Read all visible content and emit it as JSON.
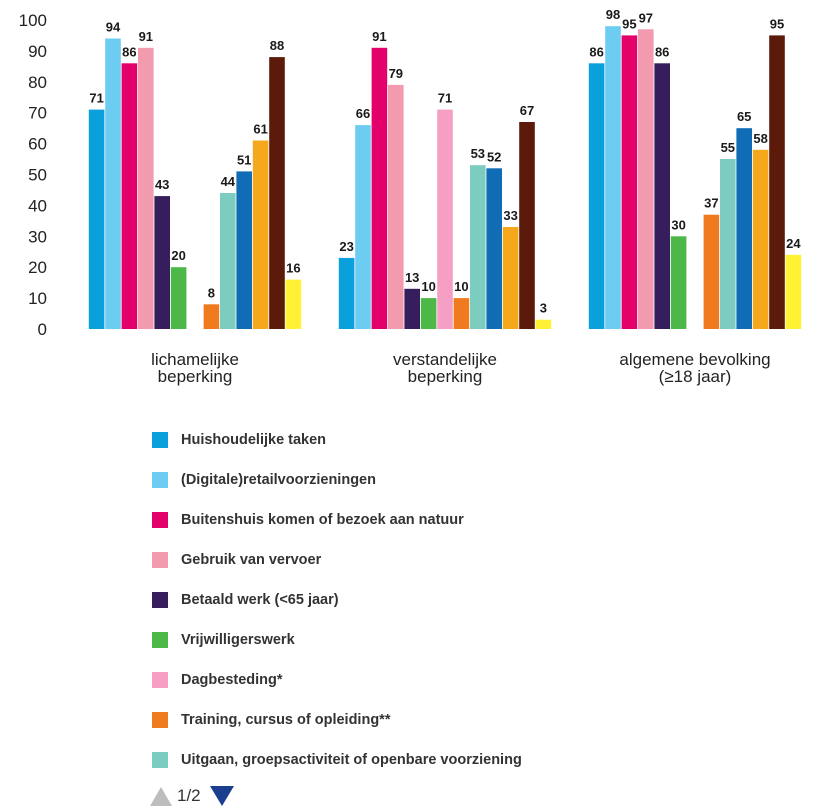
{
  "chart_data": {
    "type": "bar",
    "categories": [
      [
        "lichamelijke",
        "beperking"
      ],
      [
        "verstandelijke",
        "beperking"
      ],
      [
        "algemene bevolking",
        "(≥18 jaar)"
      ]
    ],
    "ylim": [
      0,
      100
    ],
    "yticks": [
      0,
      10,
      20,
      30,
      40,
      50,
      60,
      70,
      80,
      90,
      100
    ],
    "grid": false,
    "legend_position": "bottom",
    "series": [
      {
        "name": "Huishoudelijke taken",
        "color": "#0aa0dc",
        "values": [
          71,
          23,
          86
        ]
      },
      {
        "name": "(Digitale)retailvoorzieningen",
        "color": "#6dccf2",
        "values": [
          94,
          66,
          98
        ]
      },
      {
        "name": "Buitenshuis komen of bezoek aan natuur",
        "color": "#e4006b",
        "values": [
          86,
          91,
          95
        ]
      },
      {
        "name": "Gebruik van vervoer",
        "color": "#f29aae",
        "values": [
          91,
          79,
          97
        ]
      },
      {
        "name": "Betaald werk (<65 jaar)",
        "color": "#361d5c",
        "values": [
          43,
          13,
          86
        ]
      },
      {
        "name": "Vrijwilligerswerk",
        "color": "#4cb848",
        "values": [
          20,
          10,
          30
        ]
      },
      {
        "name": "Dagbesteding*",
        "color": "#f59fc4",
        "values": [
          null,
          71,
          null
        ]
      },
      {
        "name": "Training, cursus of opleiding**",
        "color": "#f07b1e",
        "values": [
          8,
          10,
          37
        ]
      },
      {
        "name": "Uitgaan, groepsactiviteit of openbare voorziening",
        "color": "#7dccc0",
        "values": [
          44,
          53,
          55
        ]
      },
      {
        "color": "#0f6cb5",
        "values": [
          51,
          52,
          65
        ]
      },
      {
        "color": "#f5a81c",
        "values": [
          61,
          33,
          58
        ]
      },
      {
        "color": "#5c1a0a",
        "values": [
          88,
          67,
          95
        ]
      },
      {
        "color": "#fff133",
        "values": [
          16,
          3,
          24
        ]
      }
    ]
  },
  "legend_items": [
    {
      "label": "Huishoudelijke taken",
      "color": "#0aa0dc"
    },
    {
      "label": "(Digitale)retailvoorzieningen",
      "color": "#6dccf2"
    },
    {
      "label": "Buitenshuis komen of bezoek aan natuur",
      "color": "#e4006b"
    },
    {
      "label": "Gebruik van vervoer",
      "color": "#f29aae"
    },
    {
      "label": "Betaald werk (<65 jaar)",
      "color": "#361d5c"
    },
    {
      "label": "Vrijwilligerswerk",
      "color": "#4cb848"
    },
    {
      "label": "Dagbesteding*",
      "color": "#f59fc4"
    },
    {
      "label": "Training, cursus of opleiding**",
      "color": "#f07b1e"
    },
    {
      "label": "Uitgaan, groepsactiviteit of openbare voorziening",
      "color": "#7dccc0"
    }
  ],
  "pager": {
    "text": "1/2"
  }
}
